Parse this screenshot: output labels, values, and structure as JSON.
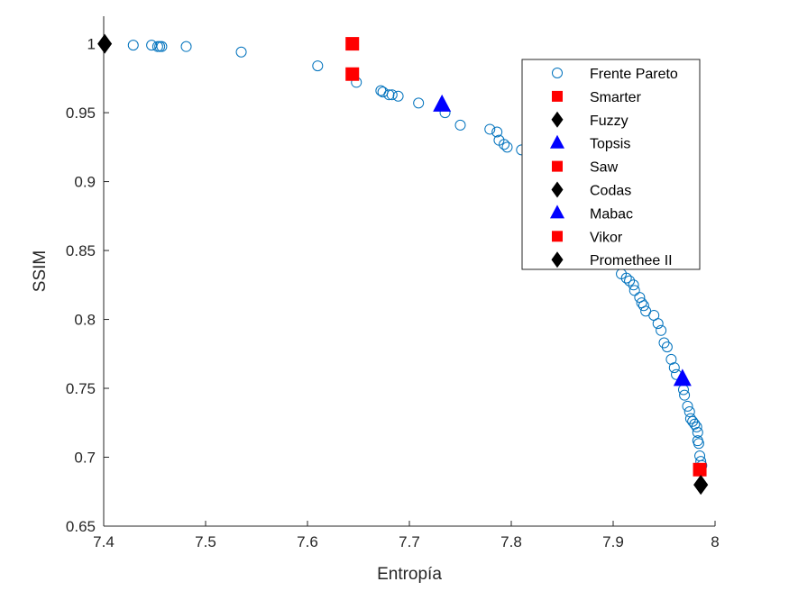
{
  "chart_data": {
    "type": "scatter",
    "title": "",
    "xlabel": "Entropía",
    "ylabel": "SSIM",
    "xlim": [
      7.4,
      8.0
    ],
    "ylim": [
      0.65,
      1.02
    ],
    "xticks": [
      "7.4",
      "7.5",
      "7.6",
      "7.7",
      "7.8",
      "7.9",
      "8"
    ],
    "yticks": [
      "0.65",
      "0.7",
      "0.75",
      "0.8",
      "0.85",
      "0.9",
      "0.95",
      "1"
    ],
    "grid": false,
    "legend_position": "top-right",
    "series": [
      {
        "name": "Frente Pareto",
        "marker": "circle-open",
        "color": "#0072bd",
        "points": [
          [
            7.429,
            0.999
          ],
          [
            7.447,
            0.999
          ],
          [
            7.453,
            0.998
          ],
          [
            7.455,
            0.998
          ],
          [
            7.457,
            0.998
          ],
          [
            7.481,
            0.998
          ],
          [
            7.535,
            0.994
          ],
          [
            7.61,
            0.984
          ],
          [
            7.648,
            0.972
          ],
          [
            7.672,
            0.966
          ],
          [
            7.674,
            0.965
          ],
          [
            7.68,
            0.963
          ],
          [
            7.683,
            0.963
          ],
          [
            7.689,
            0.962
          ],
          [
            7.709,
            0.957
          ],
          [
            7.735,
            0.95
          ],
          [
            7.75,
            0.941
          ],
          [
            7.779,
            0.938
          ],
          [
            7.786,
            0.936
          ],
          [
            7.788,
            0.93
          ],
          [
            7.793,
            0.927
          ],
          [
            7.796,
            0.925
          ],
          [
            7.81,
            0.923
          ],
          [
            7.908,
            0.833
          ],
          [
            7.913,
            0.83
          ],
          [
            7.916,
            0.828
          ],
          [
            7.92,
            0.825
          ],
          [
            7.921,
            0.821
          ],
          [
            7.926,
            0.816
          ],
          [
            7.928,
            0.812
          ],
          [
            7.93,
            0.81
          ],
          [
            7.932,
            0.806
          ],
          [
            7.94,
            0.803
          ],
          [
            7.944,
            0.797
          ],
          [
            7.947,
            0.792
          ],
          [
            7.95,
            0.783
          ],
          [
            7.953,
            0.78
          ],
          [
            7.957,
            0.771
          ],
          [
            7.96,
            0.765
          ],
          [
            7.962,
            0.76
          ],
          [
            7.969,
            0.749
          ],
          [
            7.97,
            0.745
          ],
          [
            7.973,
            0.737
          ],
          [
            7.975,
            0.733
          ],
          [
            7.976,
            0.728
          ],
          [
            7.978,
            0.726
          ],
          [
            7.98,
            0.724
          ],
          [
            7.982,
            0.722
          ],
          [
            7.983,
            0.718
          ],
          [
            7.983,
            0.712
          ],
          [
            7.984,
            0.71
          ],
          [
            7.985,
            0.701
          ],
          [
            7.986,
            0.697
          ],
          [
            7.987,
            0.694
          ]
        ]
      },
      {
        "name": "Smarter",
        "marker": "square-filled",
        "color": "#ff0000",
        "points": [
          [
            7.644,
            1.0
          ]
        ]
      },
      {
        "name": "Fuzzy",
        "marker": "diamond-filled",
        "color": "#000000",
        "points": [
          [
            7.401,
            1.0
          ]
        ]
      },
      {
        "name": "Topsis",
        "marker": "triangle-filled",
        "color": "#0000ff",
        "points": [
          [
            7.732,
            0.956
          ]
        ]
      },
      {
        "name": "Saw",
        "marker": "square-filled",
        "color": "#ff0000",
        "points": [
          [
            7.644,
            0.978
          ]
        ]
      },
      {
        "name": "Codas",
        "marker": "diamond-filled",
        "color": "#000000",
        "points": [
          [
            7.986,
            0.68
          ]
        ]
      },
      {
        "name": "Mabac",
        "marker": "triangle-filled",
        "color": "#0000ff",
        "points": [
          [
            7.968,
            0.757
          ]
        ]
      },
      {
        "name": "Vikor",
        "marker": "square-filled",
        "color": "#ff0000",
        "points": [
          [
            7.985,
            0.691
          ]
        ]
      },
      {
        "name": "Promethee II",
        "marker": "diamond-filled",
        "color": "#000000",
        "points": [
          [
            7.986,
            0.68
          ]
        ]
      }
    ]
  }
}
